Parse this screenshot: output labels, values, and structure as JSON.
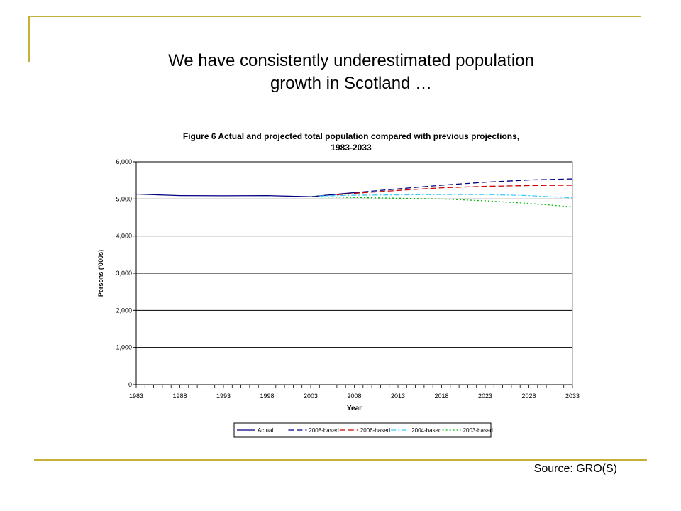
{
  "slide": {
    "title_line1": "We have consistently underestimated population",
    "title_line2": "growth in Scotland …",
    "source": "Source: GRO(S)"
  },
  "colors": {
    "accent": "#c8b036"
  },
  "chart_data": {
    "type": "line",
    "title_line1": "Figure 6 Actual and projected total population compared with previous projections,",
    "title_line2": "1983-2033",
    "xlabel": "Year",
    "ylabel": "Persons ('000s)",
    "xlim": [
      1983,
      2033
    ],
    "ylim": [
      0,
      6000
    ],
    "x_ticks": [
      "1983",
      "1988",
      "1993",
      "1998",
      "2003",
      "2008",
      "2013",
      "2018",
      "2023",
      "2028",
      "2033"
    ],
    "y_ticks": [
      "0",
      "1,000",
      "2,000",
      "3,000",
      "4,000",
      "5,000",
      "6,000"
    ],
    "y_tick_values": [
      0,
      1000,
      2000,
      3000,
      4000,
      5000,
      6000
    ],
    "grid": "horizontal",
    "legend_position": "bottom",
    "series": [
      {
        "name": "Actual",
        "color": "#000080",
        "dash": "solid",
        "x": [
          1983,
          1988,
          1993,
          1998,
          2003,
          2008
        ],
        "y": [
          5130,
          5090,
          5085,
          5090,
          5060,
          5170
        ]
      },
      {
        "name": "2008-based",
        "color": "#000080",
        "dash": "long",
        "x": [
          2008,
          2013,
          2018,
          2023,
          2028,
          2033
        ],
        "y": [
          5170,
          5270,
          5370,
          5450,
          5510,
          5540
        ]
      },
      {
        "name": "2006-based",
        "color": "#cc0000",
        "dash": "long",
        "x": [
          2006,
          2008,
          2013,
          2018,
          2023,
          2028,
          2033
        ],
        "y": [
          5110,
          5150,
          5230,
          5300,
          5340,
          5360,
          5370
        ]
      },
      {
        "name": "2004-based",
        "color": "#33ccff",
        "dash": "dashdot",
        "x": [
          2004,
          2008,
          2013,
          2018,
          2023,
          2028,
          2033
        ],
        "y": [
          5080,
          5100,
          5110,
          5120,
          5120,
          5090,
          5030
        ]
      },
      {
        "name": "2003-based",
        "color": "#00bb00",
        "dash": "dot",
        "x": [
          2003,
          2008,
          2013,
          2018,
          2023,
          2028,
          2033
        ],
        "y": [
          5060,
          5040,
          5020,
          5000,
          4950,
          4880,
          4790
        ]
      }
    ]
  }
}
